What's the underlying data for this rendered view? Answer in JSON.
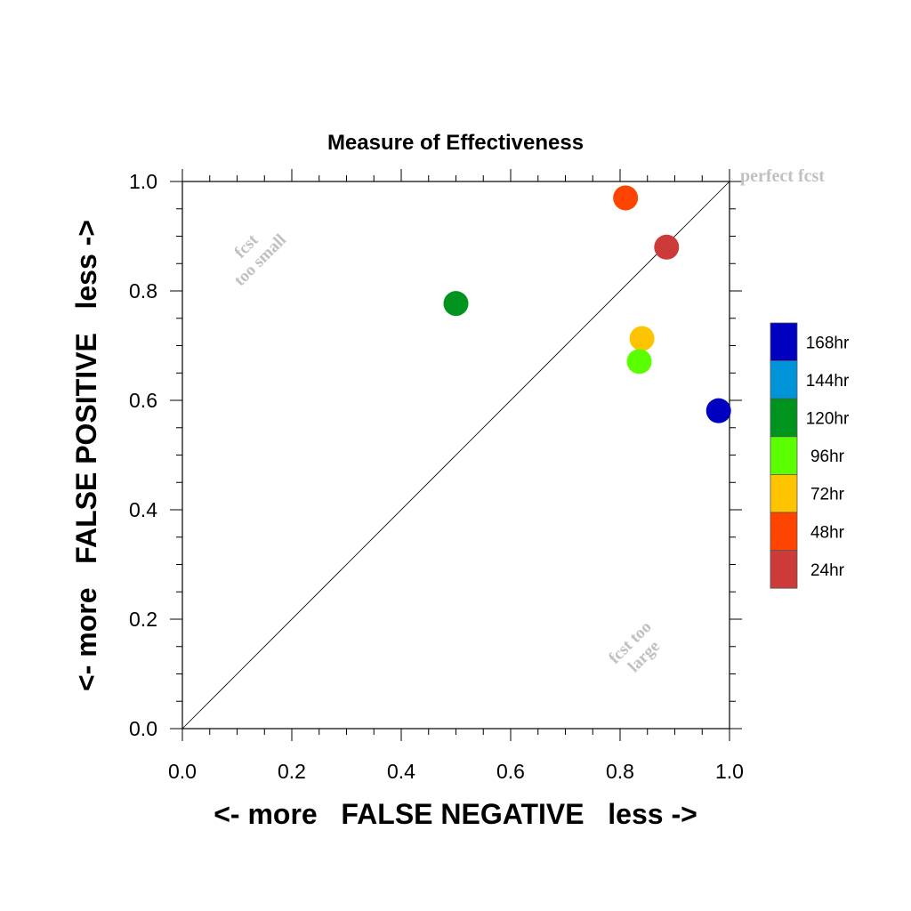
{
  "chart_data": {
    "type": "scatter",
    "title": "Measure of Effectiveness",
    "xlabel": "<- more   FALSE NEGATIVE   less ->",
    "ylabel": "<- more   FALSE POSITIVE   less ->",
    "xlim": [
      0.0,
      1.0
    ],
    "ylim": [
      0.0,
      1.0
    ],
    "x_ticks": [
      "0.0",
      "0.2",
      "0.4",
      "0.6",
      "0.8",
      "1.0"
    ],
    "y_ticks": [
      "0.0",
      "0.2",
      "0.4",
      "0.6",
      "0.8",
      "1.0"
    ],
    "grid": false,
    "reference_line": "diagonal y = x",
    "annotations": {
      "top_right": "perfect fcst",
      "upper_left_line1": "fcst",
      "upper_left_line2": "too small",
      "lower_right_line1": "fcst too",
      "lower_right_line2": "large"
    },
    "legend_position": "right",
    "legend": [
      {
        "label": "168hr",
        "color": "#0000c0"
      },
      {
        "label": "144hr",
        "color": "#0095d8"
      },
      {
        "label": "120hr",
        "color": "#00931e"
      },
      {
        "label": "96hr",
        "color": "#5aff00"
      },
      {
        "label": "72hr",
        "color": "#ffc400"
      },
      {
        "label": "48hr",
        "color": "#ff4400"
      },
      {
        "label": "24hr",
        "color": "#cc3a3a"
      }
    ],
    "points": [
      {
        "lead": "24hr",
        "x": 0.885,
        "y": 0.88,
        "color": "#cc3a3a"
      },
      {
        "lead": "48hr",
        "x": 0.81,
        "y": 0.97,
        "color": "#ff4400"
      },
      {
        "lead": "72hr",
        "x": 0.84,
        "y": 0.713,
        "color": "#ffc400"
      },
      {
        "lead": "96hr",
        "x": 0.835,
        "y": 0.671,
        "color": "#5aff00"
      },
      {
        "lead": "120hr",
        "x": 0.5,
        "y": 0.777,
        "color": "#00931e"
      },
      {
        "lead": "168hr",
        "x": 0.98,
        "y": 0.581,
        "color": "#0000c0"
      }
    ]
  }
}
